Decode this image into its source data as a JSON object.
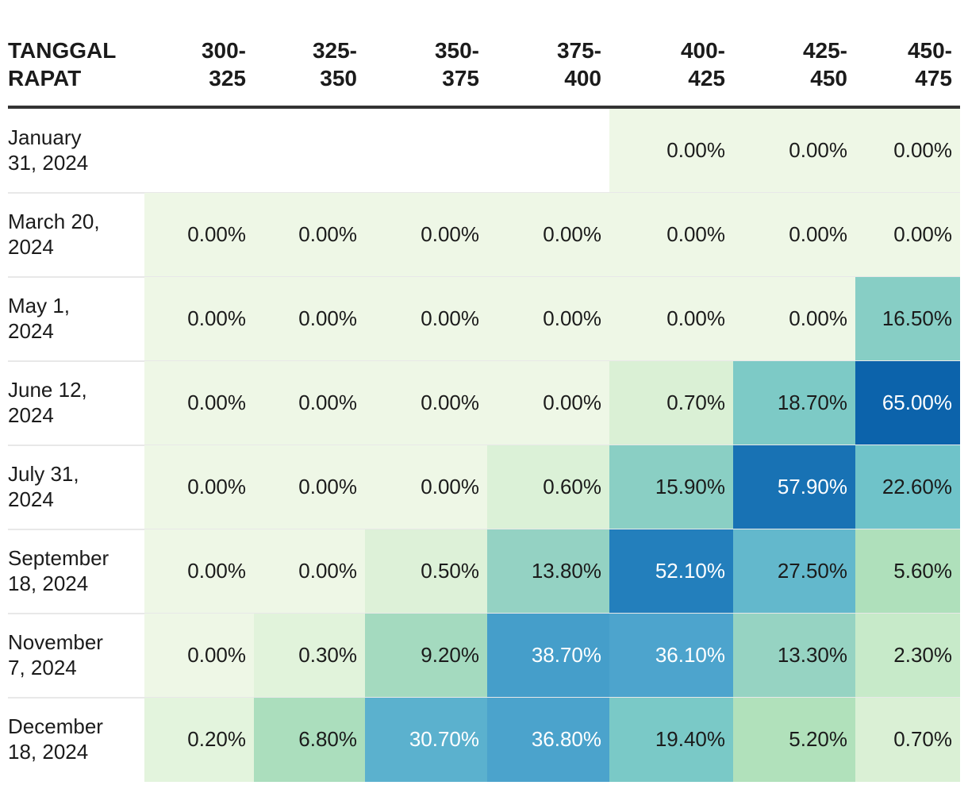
{
  "chart_data": {
    "type": "heatmap",
    "row_header": "TANGGAL\nRAPAT",
    "columns": [
      "300-\n325",
      "325-\n350",
      "350-\n375",
      "375-\n400",
      "400-\n425",
      "425-\n450",
      "450-\n475"
    ],
    "rows": [
      {
        "label": "January\n31, 2024",
        "values": [
          "",
          "",
          "",
          "",
          "0.00%",
          "0.00%",
          "0.00%"
        ]
      },
      {
        "label": "March 20,\n2024",
        "values": [
          "0.00%",
          "0.00%",
          "0.00%",
          "0.00%",
          "0.00%",
          "0.00%",
          "0.00%"
        ]
      },
      {
        "label": "May 1,\n2024",
        "values": [
          "0.00%",
          "0.00%",
          "0.00%",
          "0.00%",
          "0.00%",
          "0.00%",
          "16.50%"
        ]
      },
      {
        "label": "June 12,\n2024",
        "values": [
          "0.00%",
          "0.00%",
          "0.00%",
          "0.00%",
          "0.70%",
          "18.70%",
          "65.00%"
        ]
      },
      {
        "label": "July 31,\n2024",
        "values": [
          "0.00%",
          "0.00%",
          "0.00%",
          "0.60%",
          "15.90%",
          "57.90%",
          "22.60%"
        ]
      },
      {
        "label": "September\n18, 2024",
        "values": [
          "0.00%",
          "0.00%",
          "0.50%",
          "13.80%",
          "52.10%",
          "27.50%",
          "5.60%"
        ]
      },
      {
        "label": "November\n7, 2024",
        "values": [
          "0.00%",
          "0.30%",
          "9.20%",
          "38.70%",
          "36.10%",
          "13.30%",
          "2.30%"
        ]
      },
      {
        "label": "December\n18, 2024",
        "values": [
          "0.20%",
          "6.80%",
          "30.70%",
          "36.80%",
          "19.40%",
          "5.20%",
          "0.70%"
        ]
      }
    ],
    "color_scale": {
      "low": "#eef7e6",
      "high": "#0c63ab",
      "stops": [
        "#eef7e6",
        "#d2eecf",
        "#b0e1bb",
        "#9dd6c1",
        "#73c6c8",
        "#56acd0",
        "#2b89c2",
        "#0c63ab"
      ]
    },
    "text_colors": {
      "dark": "#1b1b1b",
      "light": "#ffffff"
    }
  }
}
